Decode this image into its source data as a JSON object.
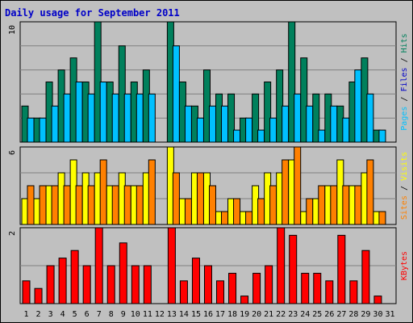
{
  "chart_data": {
    "type": "bar",
    "title": "Daily usage for September 2011",
    "categories": [
      "1",
      "2",
      "3",
      "4",
      "5",
      "6",
      "7",
      "8",
      "9",
      "10",
      "11",
      "12",
      "13",
      "14",
      "15",
      "16",
      "17",
      "18",
      "19",
      "20",
      "21",
      "22",
      "23",
      "24",
      "25",
      "26",
      "27",
      "28",
      "29",
      "30",
      "31"
    ],
    "weekend_days": [
      "3",
      "4",
      "10",
      "11",
      "17",
      "18",
      "24",
      "25",
      "31"
    ],
    "colors": {
      "background": "#c0c0c0",
      "hits": "#00805c",
      "files": "#00c0ff",
      "visits": "#ffff00",
      "sites": "#ff8000",
      "kbytes": "#ff0000",
      "title": "#0000c8",
      "weekday_label": "#000000",
      "weekend_label": "#00805c"
    },
    "panels": [
      {
        "name": "hits-files",
        "ymax": 10,
        "ymax_label": "10",
        "axis_label_parts": [
          {
            "text": "Pages",
            "color": "#00c0ff"
          },
          {
            "text": " / ",
            "color": "#000000"
          },
          {
            "text": "Files",
            "color": "#0000c8"
          },
          {
            "text": " / ",
            "color": "#000000"
          },
          {
            "text": "Hits",
            "color": "#00805c"
          }
        ],
        "series": [
          {
            "name": "Hits",
            "values": [
              3,
              2,
              5,
              6,
              7,
              5,
              10,
              5,
              8,
              5,
              6,
              0,
              10,
              5,
              3,
              6,
              4,
              4,
              2,
              4,
              5,
              6,
              10,
              7,
              4,
              4,
              3,
              5,
              7,
              1
            ]
          },
          {
            "name": "Files",
            "values": [
              2,
              2,
              3,
              4,
              5,
              4,
              5,
              4,
              4,
              4,
              4,
              0,
              8,
              3,
              2,
              3,
              3,
              1,
              2,
              1,
              2,
              3,
              4,
              3,
              1,
              3,
              2,
              6,
              4,
              1
            ]
          }
        ]
      },
      {
        "name": "visits-sites",
        "ymax": 6,
        "ymax_label": "6",
        "axis_label_parts": [
          {
            "text": "Sites",
            "color": "#ff8000"
          },
          {
            "text": " / ",
            "color": "#000000"
          },
          {
            "text": "Visits",
            "color": "#ffff00"
          }
        ],
        "series": [
          {
            "name": "Visits",
            "values": [
              2,
              2,
              3,
              4,
              5,
              4,
              4,
              3,
              4,
              3,
              4,
              0,
              6,
              2,
              4,
              4,
              1,
              2,
              1,
              3,
              4,
              4,
              5,
              1,
              2,
              3,
              5,
              3,
              4,
              1
            ]
          },
          {
            "name": "Sites",
            "values": [
              3,
              3,
              3,
              3,
              3,
              3,
              5,
              3,
              3,
              3,
              5,
              0,
              4,
              2,
              4,
              3,
              1,
              2,
              1,
              2,
              3,
              5,
              6,
              2,
              3,
              3,
              3,
              3,
              5,
              1
            ]
          }
        ]
      },
      {
        "name": "kbytes",
        "ymax": 2,
        "ymax_label": "2",
        "axis_label_parts": [
          {
            "text": "KBytes",
            "color": "#ff0000"
          }
        ],
        "series": [
          {
            "name": "KBytes",
            "values": [
              0.6,
              0.4,
              1.0,
              1.2,
              1.4,
              1.0,
              2.0,
              1.0,
              1.6,
              1.0,
              1.0,
              0.0,
              2.0,
              0.6,
              1.2,
              1.0,
              0.6,
              0.8,
              0.2,
              0.8,
              1.0,
              2.0,
              1.8,
              0.8,
              0.8,
              0.6,
              1.8,
              0.6,
              1.4,
              0.2
            ]
          }
        ]
      }
    ]
  }
}
